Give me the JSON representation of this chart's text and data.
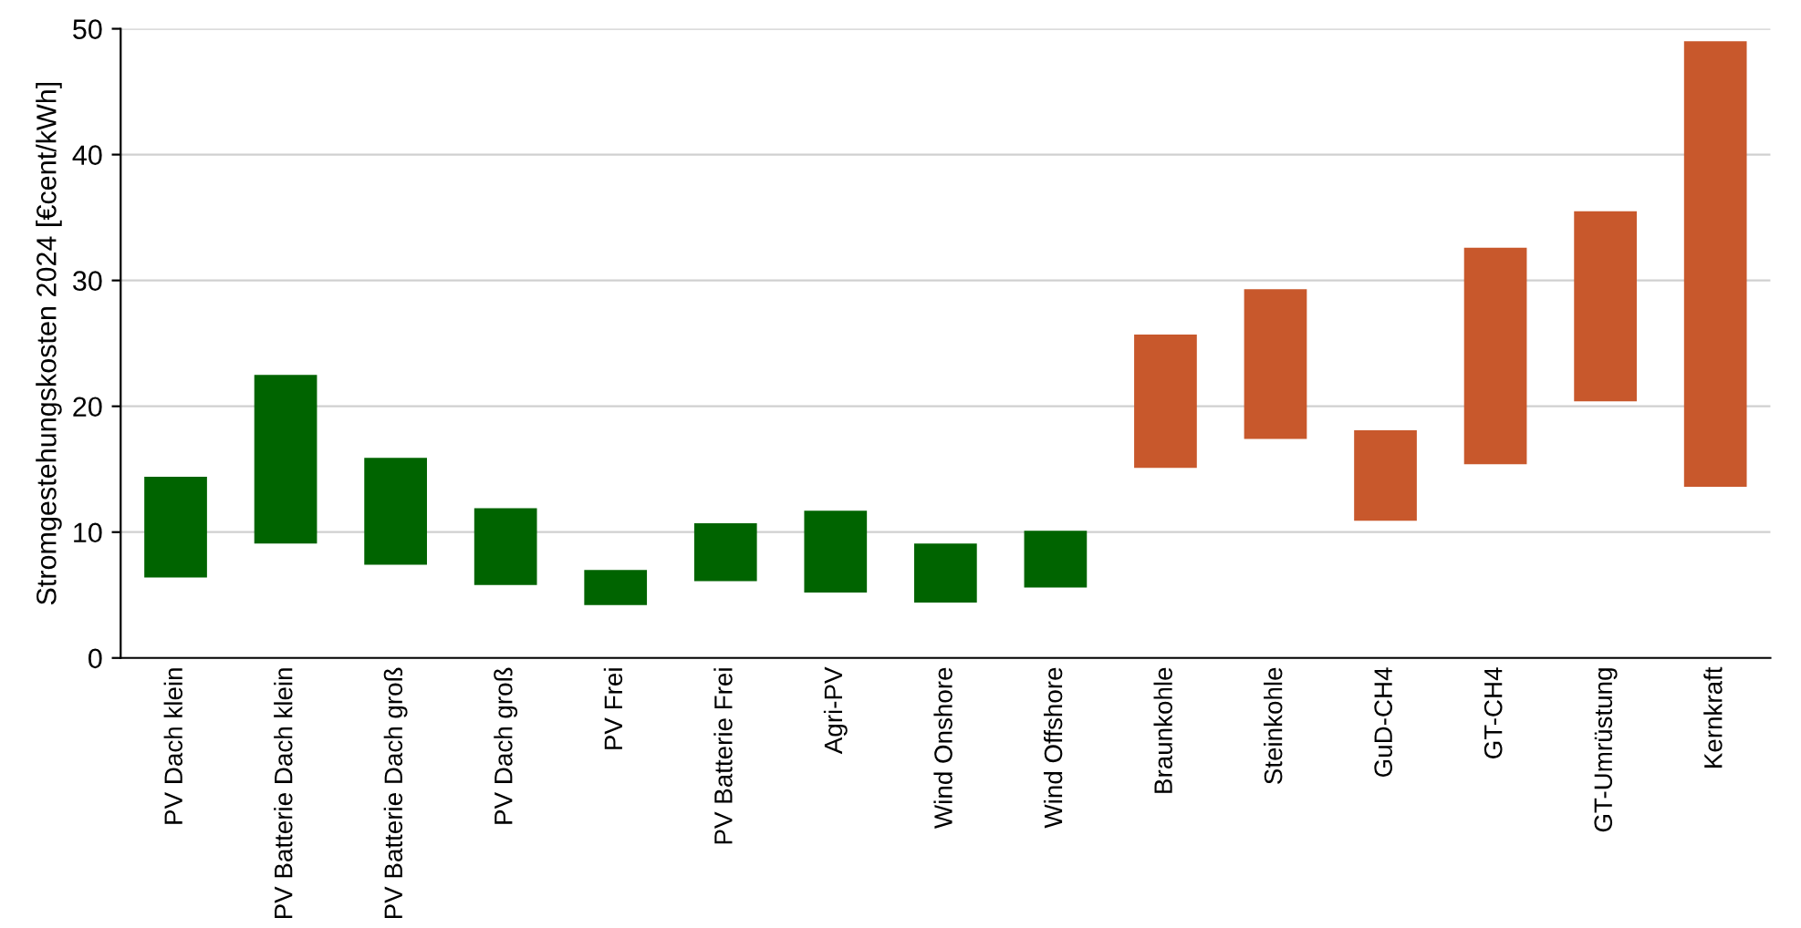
{
  "chart_data": {
    "type": "bar",
    "ylabel": "Stromgestehungskosten 2024 [€cent/kWh]",
    "categories": [
      "PV Dach klein",
      "PV Batterie Dach klein",
      "PV Batterie Dach groß",
      "PV Dach groß",
      "PV Frei",
      "PV Batterie Frei",
      "Agri-PV",
      "Wind Onshore",
      "Wind Offshore",
      "Braunkohle",
      "Steinkohle",
      "GuD-CH4",
      "GT-CH4",
      "GT-Umrüstung",
      "Kernkraft"
    ],
    "base": [
      6.4,
      9.1,
      7.4,
      5.8,
      4.2,
      6.1,
      5.2,
      4.4,
      5.6,
      15.1,
      17.4,
      10.9,
      15.4,
      20.4,
      13.6
    ],
    "values": [
      8.0,
      13.4,
      8.5,
      6.1,
      2.8,
      4.6,
      6.5,
      4.7,
      4.5,
      10.6,
      11.9,
      7.2,
      17.2,
      15.1,
      35.4
    ],
    "colors": [
      "#006400",
      "#006400",
      "#006400",
      "#006400",
      "#006400",
      "#006400",
      "#006400",
      "#006400",
      "#006400",
      "#c8582c",
      "#c8582c",
      "#c8582c",
      "#c8582c",
      "#c8582c",
      "#c8582c"
    ],
    "ylim": [
      0,
      50
    ],
    "yticks": [
      0,
      10,
      20,
      30,
      40,
      50
    ],
    "grid": "y",
    "legend": false
  }
}
